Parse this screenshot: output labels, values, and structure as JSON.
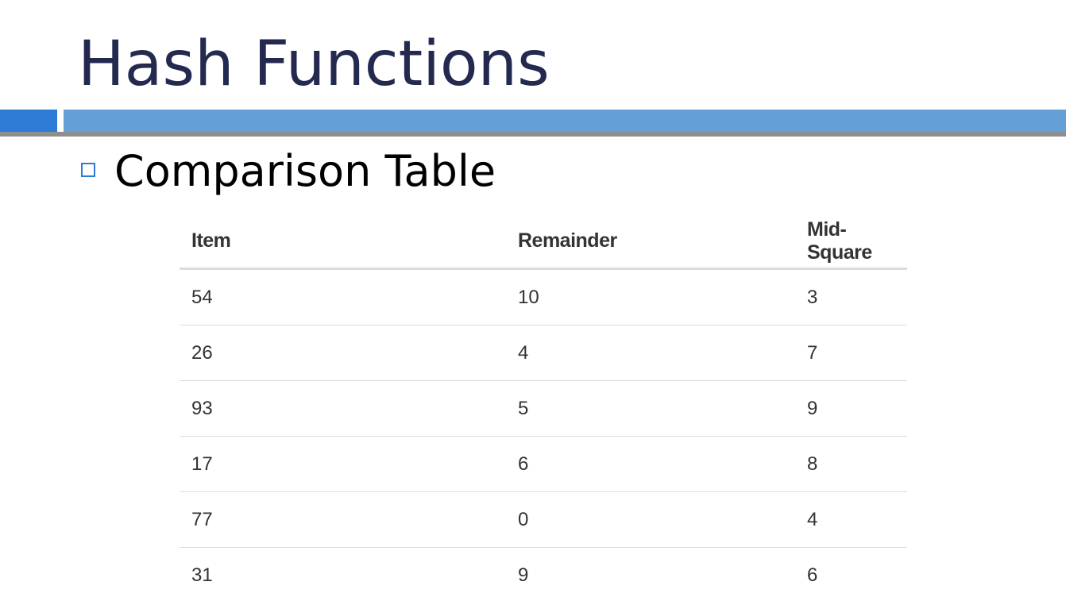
{
  "slide": {
    "title": "Hash Functions",
    "bullet": "Comparison Table"
  },
  "colors": {
    "title": "#23294f",
    "band_left": "#2e7bd6",
    "band_right": "#64a0d6",
    "rule": "#8e8e8e",
    "bullet_border": "#2e7bd6"
  },
  "table": {
    "headers": [
      "Item",
      "Remainder",
      "Mid-Square"
    ],
    "rows": [
      [
        "54",
        "10",
        "3"
      ],
      [
        "26",
        "4",
        "7"
      ],
      [
        "93",
        "5",
        "9"
      ],
      [
        "17",
        "6",
        "8"
      ],
      [
        "77",
        "0",
        "4"
      ],
      [
        "31",
        "9",
        "6"
      ]
    ]
  }
}
